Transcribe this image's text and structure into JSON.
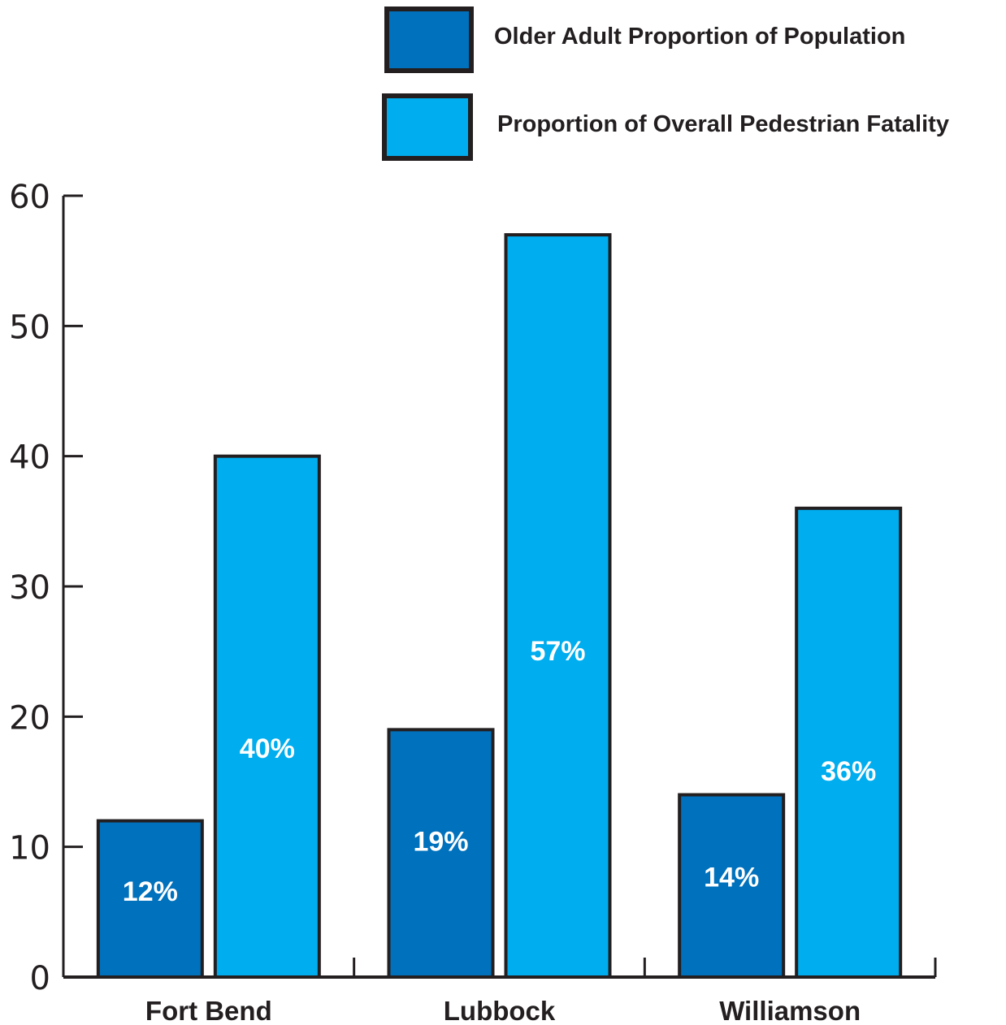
{
  "chart_data": {
    "type": "bar",
    "title": "",
    "xlabel": "",
    "ylabel": "",
    "categories": [
      "Fort Bend",
      "Lubbock",
      "Williamson"
    ],
    "series": [
      {
        "name": "Older Adult Proportion of Population",
        "values": [
          12,
          19,
          14
        ],
        "labels": [
          "12%",
          "19%",
          "14%"
        ],
        "color": "#0071bc"
      },
      {
        "name": "Proportion of Overall Pedestrian Fatality",
        "values": [
          40,
          57,
          36
        ],
        "labels": [
          "40%",
          "57%",
          "36%"
        ],
        "color": "#00adee"
      }
    ],
    "ylim": [
      0,
      60
    ],
    "yticks": [
      0,
      10,
      20,
      30,
      40,
      50,
      60
    ],
    "grid": false,
    "legend_position": "top-right",
    "border_color": "#231f20"
  }
}
